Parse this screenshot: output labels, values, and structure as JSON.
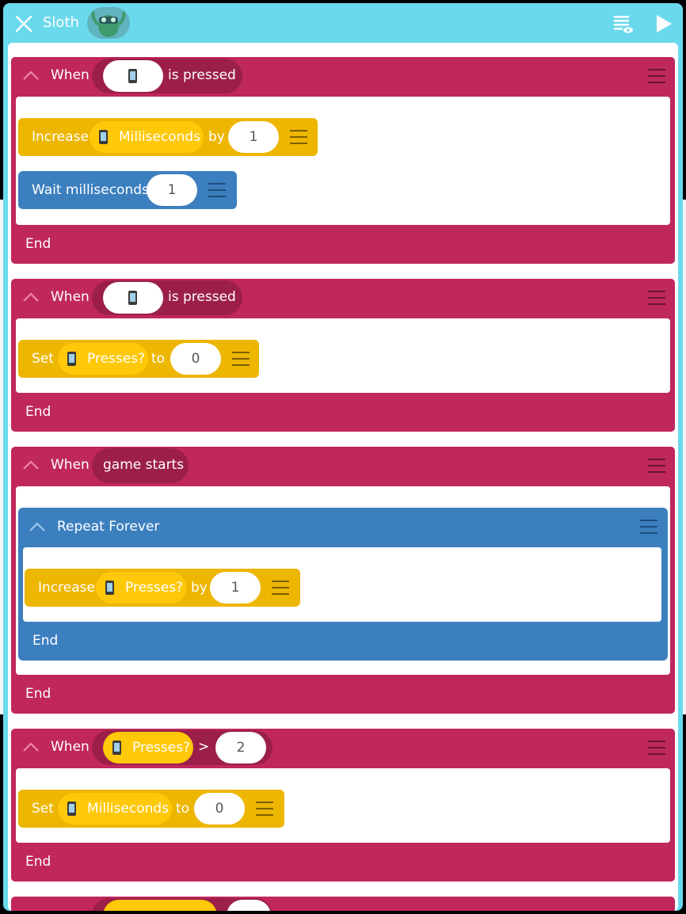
{
  "app": {
    "title": "Sloth"
  },
  "topbar": {
    "close_icon": "close-icon",
    "view_icon": "list-eye-icon",
    "play_icon": "play-icon"
  },
  "colors": {
    "rule": "#c0275c",
    "yellow_block": "#edb600",
    "blue_block": "#3c7fbf",
    "topbar": "#6bd9ec"
  },
  "rules": [
    {
      "when_label": "When",
      "trigger_suffix": "is pressed",
      "end_label": "End",
      "blocks": [
        {
          "type": "increase",
          "label": "Increase",
          "variable": "Milliseconds",
          "by_label": "by",
          "value": "1"
        },
        {
          "type": "wait",
          "label": "Wait milliseconds",
          "value": "1"
        }
      ]
    },
    {
      "when_label": "When",
      "trigger_suffix": "is pressed",
      "end_label": "End",
      "blocks": [
        {
          "type": "set",
          "label": "Set",
          "variable": "Presses?",
          "to_label": "to",
          "value": "0"
        }
      ]
    },
    {
      "when_label": "When",
      "trigger": "game starts",
      "end_label": "End",
      "loop": {
        "label": "Repeat Forever",
        "end_label": "End",
        "blocks": [
          {
            "type": "increase",
            "label": "Increase",
            "variable": "Presses?",
            "by_label": "by",
            "value": "1"
          }
        ]
      }
    },
    {
      "when_label": "When",
      "condition": {
        "variable": "Presses?",
        "operator": ">",
        "value": "2"
      },
      "end_label": "End",
      "blocks": [
        {
          "type": "set",
          "label": "Set",
          "variable": "Milliseconds",
          "to_label": "to",
          "value": "0"
        }
      ]
    }
  ]
}
